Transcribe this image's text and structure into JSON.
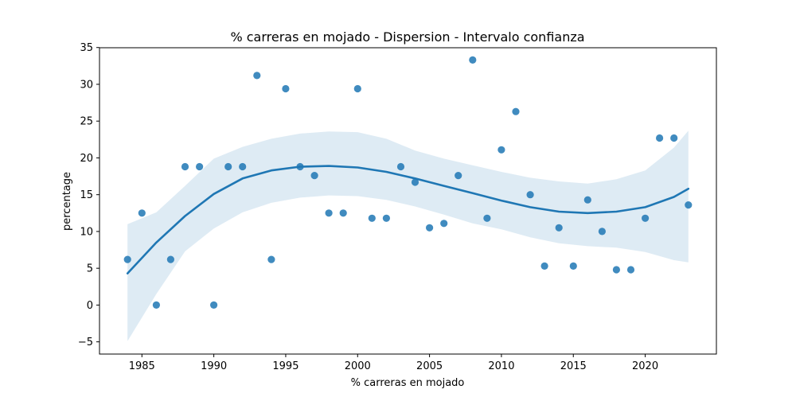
{
  "chart_data": {
    "type": "scatter",
    "title": "% carreras en mojado - Dispersion - Intervalo confianza",
    "xlabel": "% carreras en mojado",
    "ylabel": "percentage",
    "xlim": [
      1982.05,
      2024.95
    ],
    "ylim": [
      -6.66,
      34.97
    ],
    "x_ticks": [
      1985,
      1990,
      1995,
      2000,
      2005,
      2010,
      2015,
      2020
    ],
    "y_ticks": [
      -5,
      0,
      5,
      10,
      15,
      20,
      25,
      30,
      35
    ],
    "grid": false,
    "legend": "none",
    "colors": {
      "points": "#1f77b4",
      "line": "#1f77b4",
      "band": "#1f77b4"
    },
    "points": [
      {
        "x": 1984,
        "y": 6.2
      },
      {
        "x": 1985,
        "y": 12.5
      },
      {
        "x": 1986,
        "y": 0.0
      },
      {
        "x": 1987,
        "y": 6.2
      },
      {
        "x": 1988,
        "y": 18.8
      },
      {
        "x": 1989,
        "y": 18.8
      },
      {
        "x": 1990,
        "y": 0.0
      },
      {
        "x": 1991,
        "y": 18.8
      },
      {
        "x": 1992,
        "y": 18.8
      },
      {
        "x": 1993,
        "y": 31.2
      },
      {
        "x": 1994,
        "y": 6.2
      },
      {
        "x": 1995,
        "y": 29.4
      },
      {
        "x": 1996,
        "y": 18.8
      },
      {
        "x": 1997,
        "y": 17.6
      },
      {
        "x": 1998,
        "y": 12.5
      },
      {
        "x": 1999,
        "y": 12.5
      },
      {
        "x": 2000,
        "y": 29.4
      },
      {
        "x": 2001,
        "y": 11.8
      },
      {
        "x": 2002,
        "y": 11.8
      },
      {
        "x": 2003,
        "y": 18.8
      },
      {
        "x": 2004,
        "y": 16.7
      },
      {
        "x": 2005,
        "y": 10.5
      },
      {
        "x": 2006,
        "y": 11.1
      },
      {
        "x": 2007,
        "y": 17.6
      },
      {
        "x": 2008,
        "y": 33.3
      },
      {
        "x": 2009,
        "y": 11.8
      },
      {
        "x": 2010,
        "y": 21.1
      },
      {
        "x": 2011,
        "y": 26.3
      },
      {
        "x": 2012,
        "y": 15.0
      },
      {
        "x": 2013,
        "y": 5.3
      },
      {
        "x": 2014,
        "y": 10.5
      },
      {
        "x": 2015,
        "y": 5.3
      },
      {
        "x": 2016,
        "y": 14.3
      },
      {
        "x": 2017,
        "y": 10.0
      },
      {
        "x": 2018,
        "y": 4.8
      },
      {
        "x": 2019,
        "y": 4.8
      },
      {
        "x": 2020,
        "y": 11.8
      },
      {
        "x": 2021,
        "y": 22.7
      },
      {
        "x": 2022,
        "y": 22.7
      },
      {
        "x": 2023,
        "y": 13.6
      }
    ],
    "regression": {
      "x": [
        1984,
        1986,
        1988,
        1990,
        1992,
        1994,
        1996,
        1998,
        2000,
        2002,
        2004,
        2006,
        2008,
        2010,
        2012,
        2014,
        2016,
        2018,
        2020,
        2022,
        2023
      ],
      "y": [
        4.3,
        8.5,
        12.1,
        15.1,
        17.2,
        18.3,
        18.8,
        18.9,
        18.7,
        18.1,
        17.2,
        16.2,
        15.2,
        14.2,
        13.3,
        12.7,
        12.5,
        12.7,
        13.3,
        14.7,
        15.8
      ],
      "lower": [
        -4.9,
        1.5,
        7.3,
        10.4,
        12.6,
        13.9,
        14.6,
        14.9,
        14.8,
        14.3,
        13.4,
        12.3,
        11.1,
        10.3,
        9.2,
        8.4,
        8.0,
        7.8,
        7.2,
        6.1,
        5.8
      ],
      "upper": [
        11.0,
        12.6,
        16.2,
        19.9,
        21.5,
        22.6,
        23.3,
        23.6,
        23.5,
        22.6,
        21.0,
        19.9,
        19.0,
        18.1,
        17.3,
        16.8,
        16.5,
        17.1,
        18.3,
        21.4,
        23.7
      ]
    }
  }
}
